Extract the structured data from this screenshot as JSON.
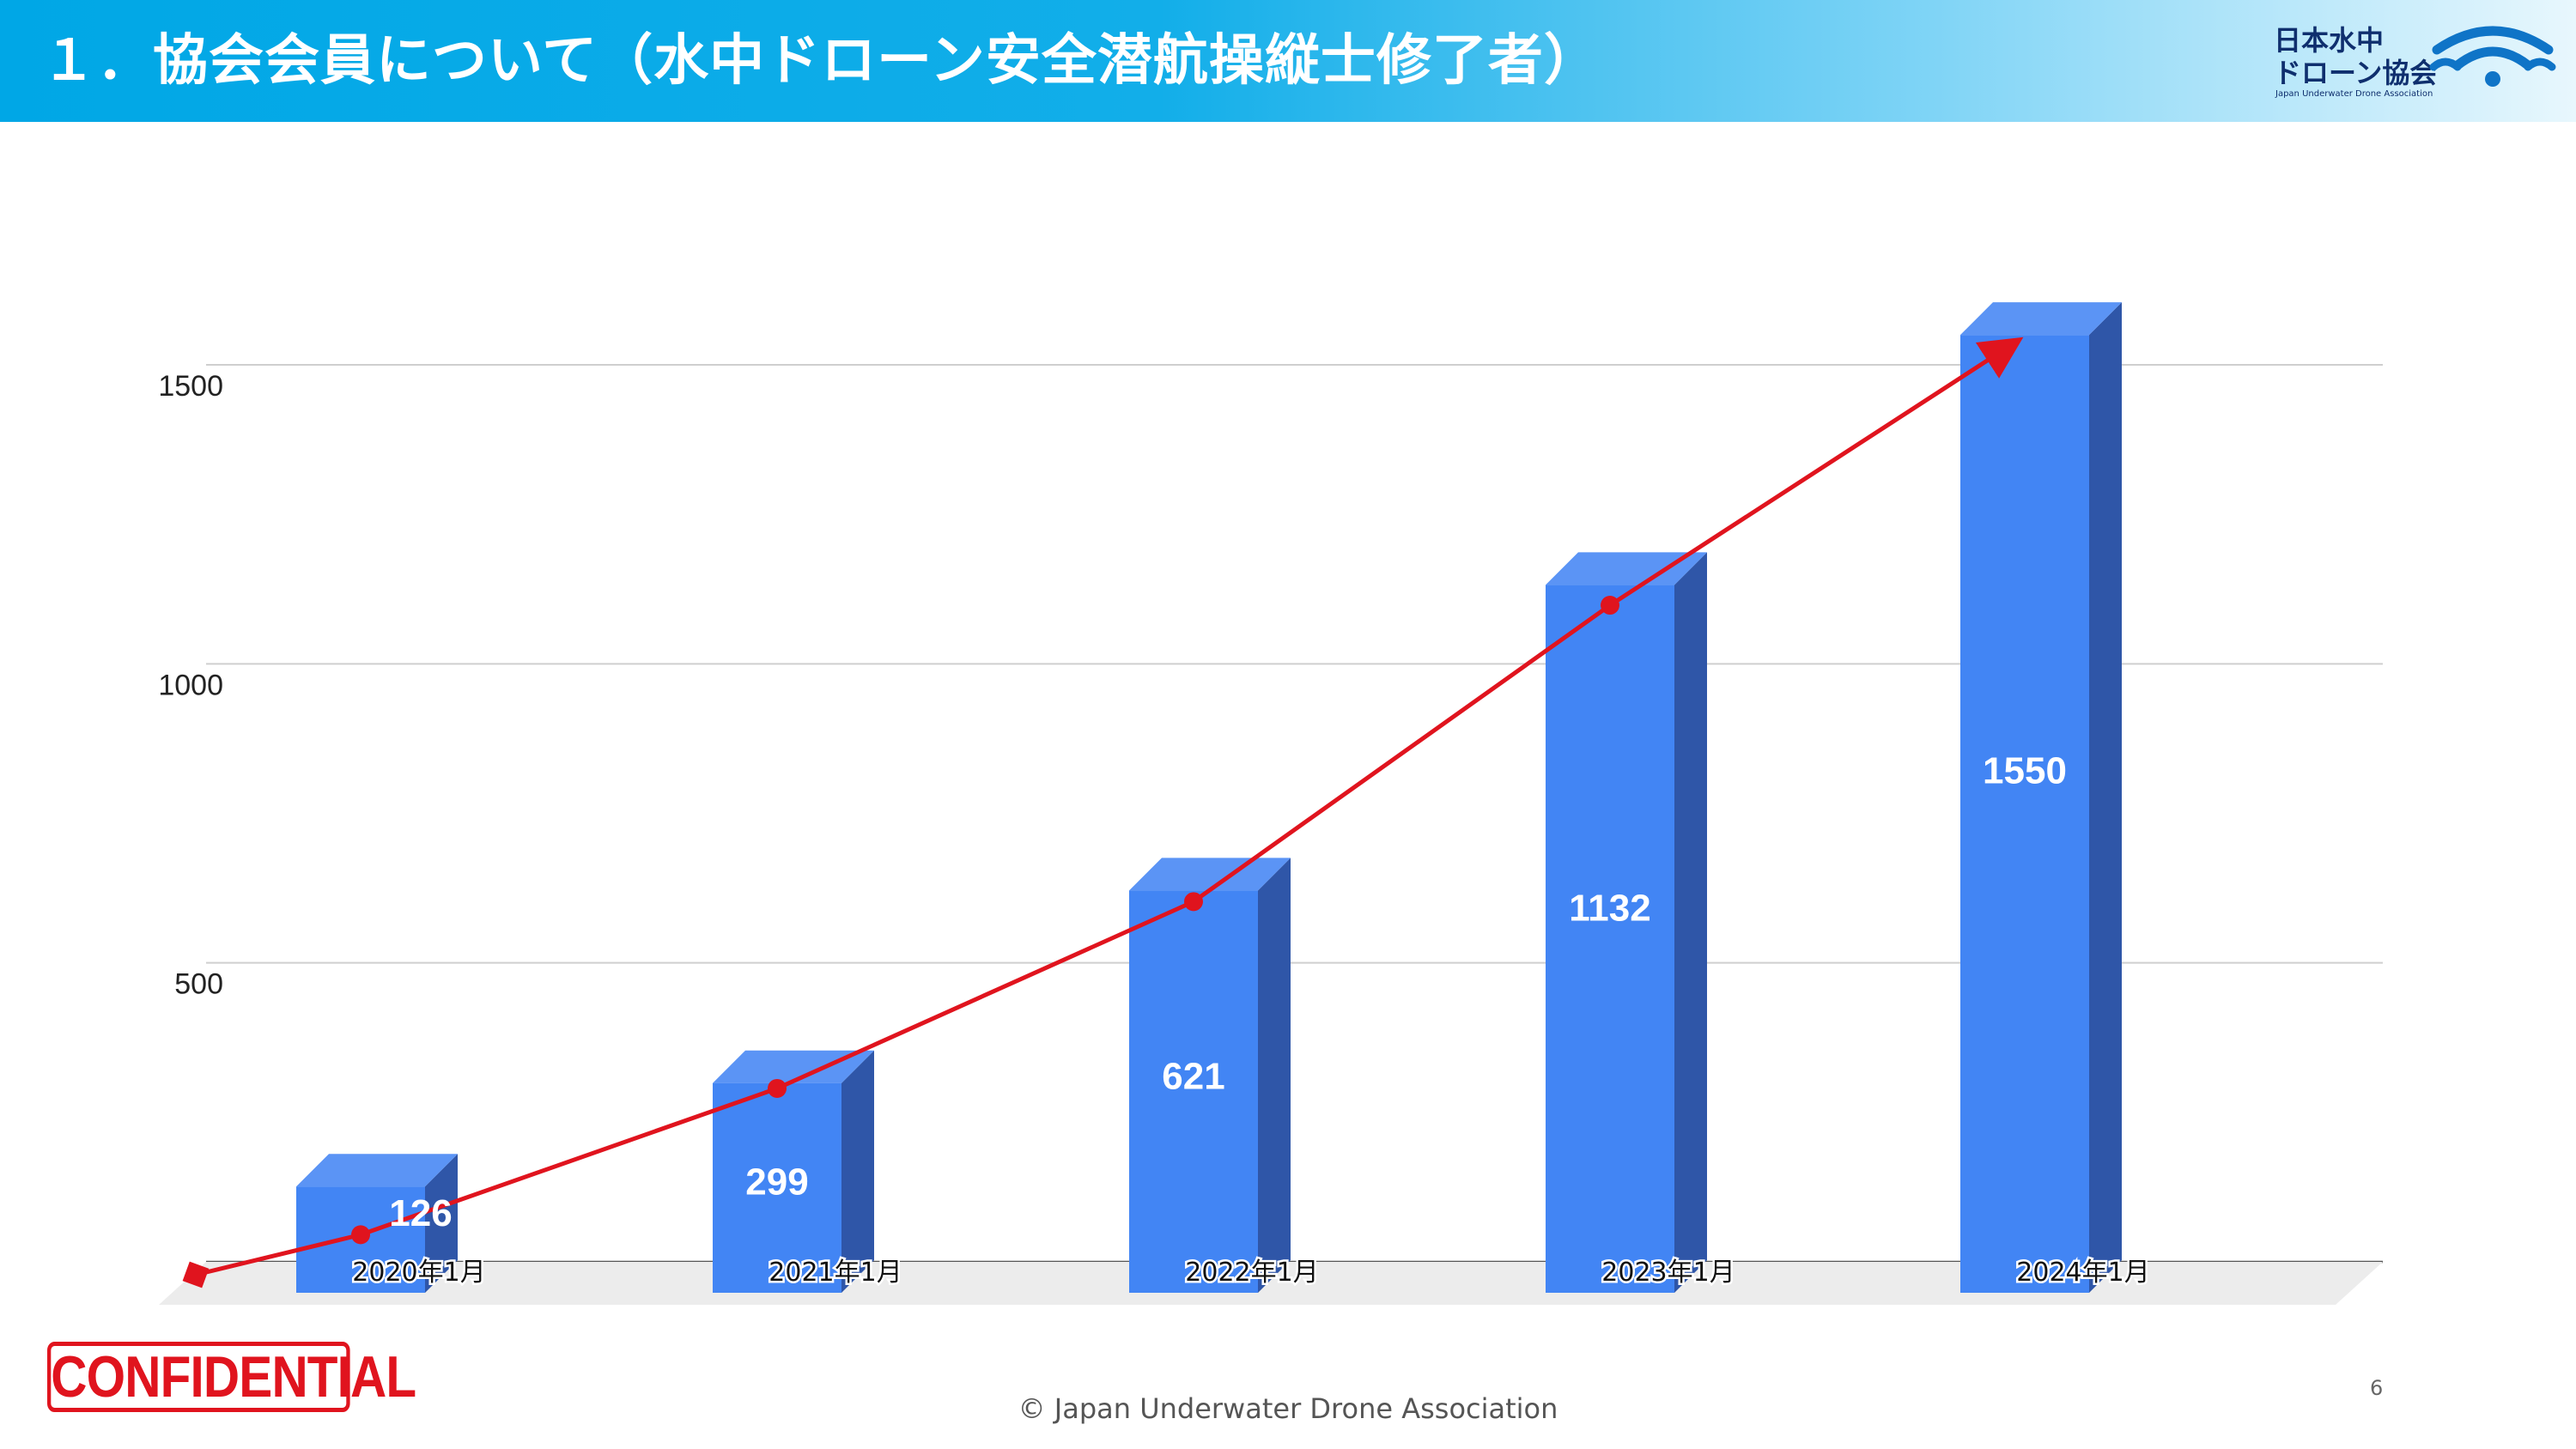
{
  "header": {
    "title": "１．協会会員について（水中ドローン安全潜航操縦士修了者）"
  },
  "logo": {
    "name_line1": "日本水中",
    "name_line2": "ドローン協会",
    "english": "Japan Underwater Drone Association",
    "color": "#0f2f6e",
    "icon": "wifi-wave-logo-icon"
  },
  "chart_data": {
    "type": "bar",
    "categories": [
      "2020年1月",
      "2021年1月",
      "2022年1月",
      "2023年1月",
      "2024年1月"
    ],
    "values": [
      126,
      299,
      621,
      1132,
      1550
    ],
    "y_ticks": [
      500,
      1000,
      1500
    ],
    "ylim": [
      0,
      1600
    ],
    "grid": true,
    "legend": "none",
    "bar_color": "#4285f4",
    "bar_side_color": "#2f56a8",
    "bar_top_color": "#5b94f5",
    "trend_color": "#e0141e",
    "trend_arrow": true
  },
  "footer": {
    "stamp": "CONFIDENTIAL",
    "copyright": "© Japan Underwater Drone Association",
    "page_number": "6"
  }
}
